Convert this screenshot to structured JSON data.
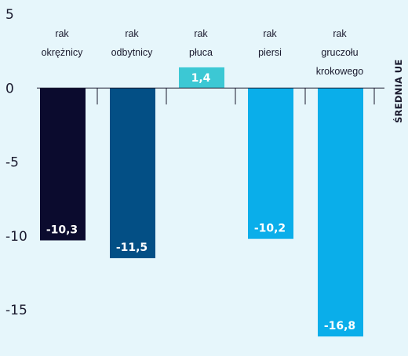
{
  "chart_data": {
    "type": "bar",
    "categories": [
      [
        "rak",
        "okrężnicy"
      ],
      [
        "rak",
        "odbytnicy"
      ],
      [
        "rak",
        "płuca"
      ],
      [
        "rak",
        "piersi"
      ],
      [
        "rak",
        "gruczołu",
        "krokowego"
      ]
    ],
    "values": [
      -10.3,
      -11.5,
      1.4,
      -10.2,
      -16.8
    ],
    "value_labels": [
      "-10,3",
      "-11,5",
      "1,4",
      "-10,2",
      "-16,8"
    ],
    "bar_colors": [
      "#0b0b2e",
      "#034f85",
      "#3cc8d4",
      "#0aaeea",
      "#0aaeea"
    ],
    "value_label_colors": [
      "#ffffff",
      "#ffffff",
      "#ffffff",
      "#ffffff",
      "#ffffff"
    ],
    "y_ticks": [
      5,
      0,
      -5,
      -10,
      -15
    ],
    "y_tick_labels": [
      "5",
      "0",
      "-5",
      "-10",
      "-15"
    ],
    "ylim": [
      -16.9,
      5
    ],
    "baseline_label": "ŚREDNIA UE",
    "title": "",
    "xlabel": "",
    "ylabel": "",
    "grid": false,
    "legend": "none",
    "colors": {
      "background": "#e6f6fb",
      "axis": "#1a1a2e"
    }
  }
}
